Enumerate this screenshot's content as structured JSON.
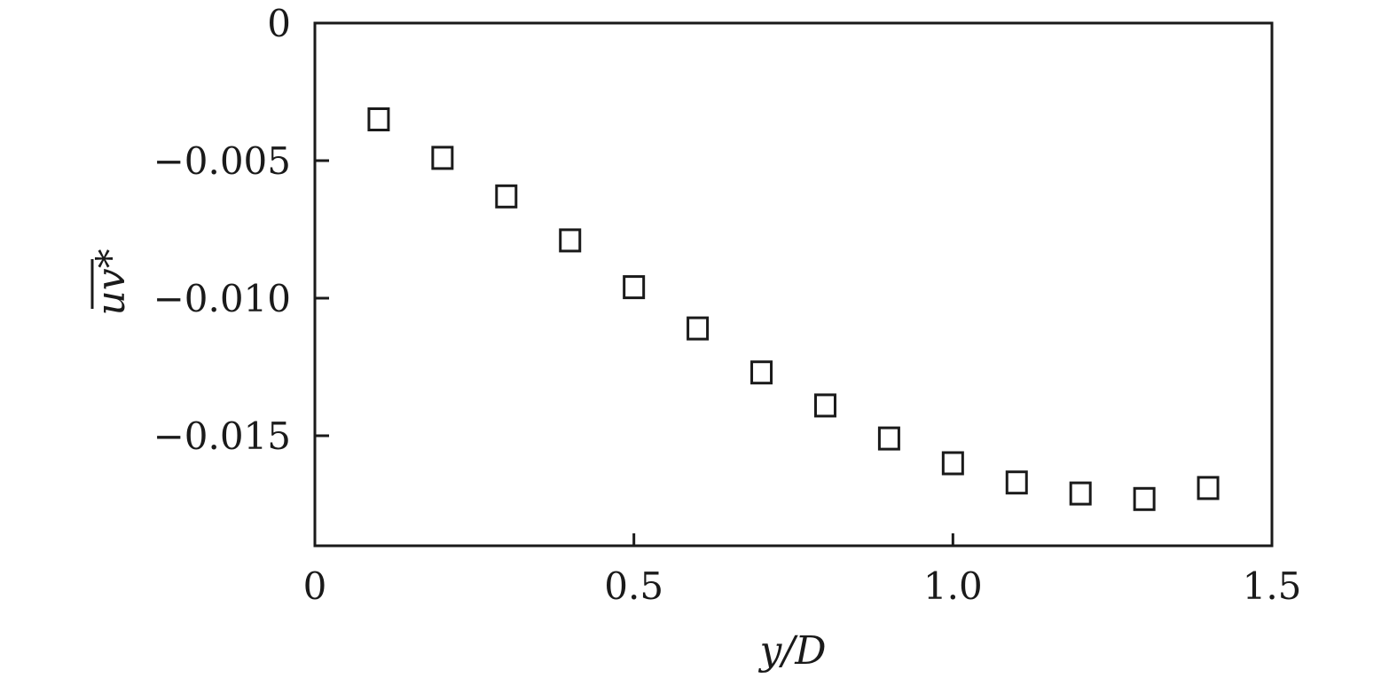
{
  "chart_data": {
    "type": "scatter",
    "xlabel": "y/D",
    "ylabel": "uv*",
    "xlim": [
      0,
      1.5
    ],
    "ylim": [
      -0.019,
      0
    ],
    "x_ticks": [
      {
        "value": 0,
        "label": "0"
      },
      {
        "value": 0.5,
        "label": "0.5"
      },
      {
        "value": 1.0,
        "label": "1.0"
      },
      {
        "value": 1.5,
        "label": "1.5"
      }
    ],
    "y_ticks": [
      {
        "value": 0,
        "label": "0"
      },
      {
        "value": -0.005,
        "label": "−0.005"
      },
      {
        "value": -0.01,
        "label": "−0.010"
      },
      {
        "value": -0.015,
        "label": "−0.015"
      }
    ],
    "marker": "open-square",
    "grid": false,
    "series": [
      {
        "points": [
          {
            "x": 0.1,
            "y": -0.0035
          },
          {
            "x": 0.2,
            "y": -0.0049
          },
          {
            "x": 0.3,
            "y": -0.0063
          },
          {
            "x": 0.4,
            "y": -0.0079
          },
          {
            "x": 0.5,
            "y": -0.0096
          },
          {
            "x": 0.6,
            "y": -0.0111
          },
          {
            "x": 0.7,
            "y": -0.0127
          },
          {
            "x": 0.8,
            "y": -0.0139
          },
          {
            "x": 0.9,
            "y": -0.0151
          },
          {
            "x": 1.0,
            "y": -0.016
          },
          {
            "x": 1.1,
            "y": -0.0167
          },
          {
            "x": 1.2,
            "y": -0.0171
          },
          {
            "x": 1.3,
            "y": -0.0173
          },
          {
            "x": 1.4,
            "y": -0.0169
          }
        ]
      }
    ]
  }
}
